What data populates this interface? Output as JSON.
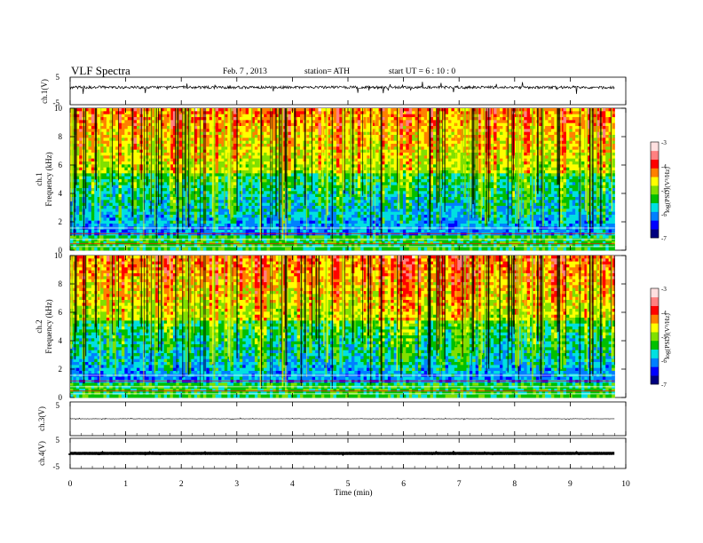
{
  "header": {
    "title": "VLF  Spectra",
    "date": "Feb. 7  , 2013",
    "station": "station= ATH",
    "start": "start  UT  =   6  : 10 : 0"
  },
  "colors": {
    "palette": [
      "#000080",
      "#0000ff",
      "#0080ff",
      "#00e0e0",
      "#00c000",
      "#80e000",
      "#ffff00",
      "#ff8000",
      "#ff0000",
      "#ff8080",
      "#ffe0e0"
    ]
  },
  "chart_data": [
    {
      "id": "ch1_wave",
      "type": "line",
      "ylabel": "ch.1(V)",
      "ylim": [
        -5,
        5
      ],
      "yticks": [
        "5",
        "-5"
      ],
      "series": [
        {
          "x": [
            0,
            9.8
          ],
          "values": [
            1.3,
            1.3
          ]
        }
      ],
      "xlim": [
        0,
        10
      ]
    },
    {
      "id": "ch1_spec",
      "type": "heatmap",
      "channel_label": "ch.1",
      "ylabel": "Frequency  (kHz)",
      "ylim": [
        0,
        10
      ],
      "yticks": [
        "0",
        "2",
        "4",
        "6",
        "8",
        "10"
      ],
      "xlim": [
        0,
        10
      ],
      "data_end_min": 9.8,
      "colorbar": {
        "label": "log(PSD)(V²/Hz)",
        "range": [
          -7,
          -3
        ],
        "ticks": [
          "-3",
          "-4",
          "-5",
          "-6",
          "-7"
        ]
      }
    },
    {
      "id": "ch2_spec",
      "type": "heatmap",
      "channel_label": "ch.2",
      "ylabel": "Frequency  (kHz)",
      "ylim": [
        0,
        10
      ],
      "yticks": [
        "0",
        "2",
        "4",
        "6",
        "8",
        "10"
      ],
      "xlim": [
        0,
        10
      ],
      "data_end_min": 9.8,
      "colorbar": {
        "label": "log(PSD)(V²/Hz)",
        "range": [
          -7,
          -3
        ],
        "ticks": [
          "-3",
          "-4",
          "-5",
          "-6",
          "-7"
        ]
      }
    },
    {
      "id": "ch3_wave",
      "type": "line",
      "ylabel": "ch.3(V)",
      "ylim": [
        -5,
        5
      ],
      "yticks": [
        "5"
      ],
      "series": [
        {
          "x": [
            0,
            9.8
          ],
          "values": [
            0,
            0
          ]
        }
      ],
      "xlim": [
        0,
        10
      ]
    },
    {
      "id": "ch4_wave",
      "type": "line",
      "ylabel": "ch.4(V)",
      "ylim": [
        -5,
        5
      ],
      "yticks": [
        "5",
        "-5"
      ],
      "series": [
        {
          "x": [
            0,
            9.8
          ],
          "values": [
            0,
            0
          ]
        }
      ],
      "xlim": [
        0,
        10
      ]
    }
  ],
  "xaxis": {
    "label": "Time  (min)",
    "ticks": [
      "0",
      "1",
      "2",
      "3",
      "4",
      "5",
      "6",
      "7",
      "8",
      "9",
      "10"
    ]
  }
}
